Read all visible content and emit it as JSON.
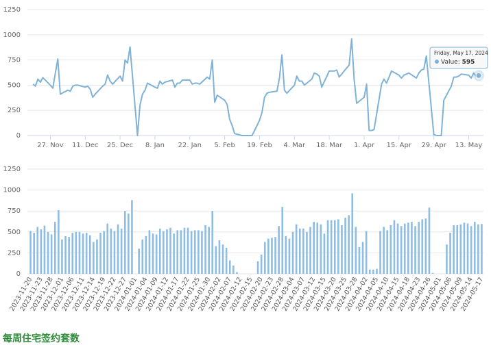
{
  "chart_data": [
    {
      "type": "line",
      "x": [
        "2023-11-20",
        "2023-11-21",
        "2023-11-22",
        "2023-11-23",
        "2023-11-24",
        "2023-11-27",
        "2023-11-28",
        "2023-11-29",
        "2023-11-30",
        "2023-12-01",
        "2023-12-04",
        "2023-12-05",
        "2023-12-06",
        "2023-12-07",
        "2023-12-08",
        "2023-12-11",
        "2023-12-12",
        "2023-12-13",
        "2023-12-14",
        "2023-12-15",
        "2023-12-18",
        "2023-12-19",
        "2023-12-20",
        "2023-12-21",
        "2023-12-22",
        "2023-12-25",
        "2023-12-26",
        "2023-12-27",
        "2023-12-28",
        "2023-12-29",
        "2024-01-01",
        "2024-01-02",
        "2024-01-03",
        "2024-01-04",
        "2024-01-05",
        "2024-01-08",
        "2024-01-09",
        "2024-01-10",
        "2024-01-11",
        "2024-01-12",
        "2024-01-15",
        "2024-01-16",
        "2024-01-17",
        "2024-01-18",
        "2024-01-19",
        "2024-01-22",
        "2024-01-23",
        "2024-01-24",
        "2024-01-25",
        "2024-01-26",
        "2024-01-29",
        "2024-01-30",
        "2024-01-31",
        "2024-02-01",
        "2024-02-02",
        "2024-02-05",
        "2024-02-06",
        "2024-02-07",
        "2024-02-08",
        "2024-02-09",
        "2024-02-12",
        "2024-02-13",
        "2024-02-14",
        "2024-02-15",
        "2024-02-16",
        "2024-02-19",
        "2024-02-20",
        "2024-02-21",
        "2024-02-22",
        "2024-02-23",
        "2024-02-26",
        "2024-02-27",
        "2024-02-28",
        "2024-02-29",
        "2024-03-01",
        "2024-03-04",
        "2024-03-05",
        "2024-03-06",
        "2024-03-07",
        "2024-03-08",
        "2024-03-11",
        "2024-03-12",
        "2024-03-13",
        "2024-03-14",
        "2024-03-15",
        "2024-03-18",
        "2024-03-19",
        "2024-03-20",
        "2024-03-21",
        "2024-03-22",
        "2024-03-25",
        "2024-03-26",
        "2024-03-27",
        "2024-03-28",
        "2024-03-29",
        "2024-04-01",
        "2024-04-02",
        "2024-04-03",
        "2024-04-04",
        "2024-04-05",
        "2024-04-08",
        "2024-04-09",
        "2024-04-10",
        "2024-04-11",
        "2024-04-12",
        "2024-04-15",
        "2024-04-16",
        "2024-04-17",
        "2024-04-18",
        "2024-04-19",
        "2024-04-22",
        "2024-04-23",
        "2024-04-24",
        "2024-04-25",
        "2024-04-26",
        "2024-04-29",
        "2024-04-30",
        "2024-05-01",
        "2024-05-02",
        "2024-05-03",
        "2024-05-06",
        "2024-05-07",
        "2024-05-08",
        "2024-05-09",
        "2024-05-10",
        "2024-05-13",
        "2024-05-14",
        "2024-05-15",
        "2024-05-16",
        "2024-05-17"
      ],
      "values": [
        510,
        490,
        560,
        530,
        575,
        500,
        470,
        620,
        760,
        410,
        450,
        440,
        490,
        500,
        500,
        480,
        490,
        460,
        380,
        410,
        490,
        510,
        600,
        540,
        510,
        590,
        540,
        750,
        720,
        880,
        0,
        300,
        410,
        450,
        520,
        480,
        470,
        540,
        510,
        530,
        550,
        480,
        520,
        520,
        550,
        550,
        510,
        520,
        520,
        510,
        580,
        560,
        750,
        330,
        400,
        350,
        310,
        160,
        100,
        20,
        0,
        0,
        0,
        0,
        0,
        150,
        230,
        380,
        420,
        430,
        440,
        570,
        800,
        450,
        420,
        500,
        590,
        540,
        540,
        500,
        560,
        620,
        610,
        590,
        480,
        640,
        640,
        640,
        650,
        580,
        670,
        700,
        960,
        560,
        320,
        380,
        510,
        50,
        50,
        60,
        510,
        560,
        520,
        580,
        640,
        600,
        570,
        600,
        610,
        620,
        570,
        620,
        650,
        660,
        790,
        10,
        0,
        0,
        0,
        350,
        490,
        580,
        580,
        590,
        610,
        600,
        570,
        620,
        590,
        595
      ],
      "color": "#7fb2d6",
      "xlim": [
        "2023-11-20",
        "2024-05-17"
      ],
      "xticks": [
        {
          "value": "2023-11-27",
          "label": "27. Nov"
        },
        {
          "value": "2023-12-11",
          "label": "11. Dec"
        },
        {
          "value": "2023-12-25",
          "label": "25. Dec"
        },
        {
          "value": "2024-01-08",
          "label": "8. Jan"
        },
        {
          "value": "2024-01-22",
          "label": "22. Jan"
        },
        {
          "value": "2024-02-05",
          "label": "5. Feb"
        },
        {
          "value": "2024-02-19",
          "label": "19. Feb"
        },
        {
          "value": "2024-03-04",
          "label": "4. Mar"
        },
        {
          "value": "2024-03-18",
          "label": "18. Mar"
        },
        {
          "value": "2024-04-01",
          "label": "1. Apr"
        },
        {
          "value": "2024-04-15",
          "label": "15. Apr"
        },
        {
          "value": "2024-04-29",
          "label": "29. Apr"
        },
        {
          "value": "2024-05-13",
          "label": "13. May"
        }
      ],
      "ylim": [
        0,
        1250
      ],
      "yticks": [
        0,
        250,
        500,
        750,
        1000,
        1250
      ],
      "grid": true,
      "tooltip": {
        "title": "Friday, May 17, 2024",
        "name": "Value:",
        "value": 595
      }
    },
    {
      "type": "bar",
      "categories": [
        "2023-11-20",
        null,
        null,
        "2023-11-23",
        null,
        null,
        "2023-11-28",
        null,
        null,
        "2023-12-01",
        null,
        null,
        "2023-12-06",
        null,
        null,
        "2023-12-11",
        null,
        null,
        "2023-12-14",
        null,
        null,
        "2023-12-19",
        null,
        null,
        "2023-12-22",
        null,
        null,
        "2023-12-27",
        null,
        null,
        "2024-01-01",
        null,
        null,
        "2024-01-04",
        null,
        null,
        "2024-01-09",
        null,
        null,
        "2024-01-12",
        null,
        null,
        "2024-01-17",
        null,
        null,
        "2024-01-22",
        null,
        null,
        "2024-01-25",
        null,
        null,
        "2024-01-30",
        null,
        null,
        "2024-02-02",
        null,
        null,
        "2024-02-07",
        null,
        null,
        "2024-02-12",
        null,
        null,
        "2024-02-15",
        null,
        null,
        "2024-02-20",
        null,
        null,
        "2024-02-23",
        null,
        null,
        "2024-02-28",
        null,
        null,
        "2024-03-04",
        null,
        null,
        "2024-03-07",
        null,
        null,
        "2024-03-12",
        null,
        null,
        "2024-03-15",
        null,
        null,
        "2024-03-20",
        null,
        null,
        "2024-03-25",
        null,
        null,
        "2024-03-28",
        null,
        null,
        "2024-04-02",
        null,
        null,
        "2024-04-05",
        null,
        null,
        "2024-04-10",
        null,
        null,
        "2024-04-15",
        null,
        null,
        "2024-04-18",
        null,
        null,
        "2024-04-23",
        null,
        null,
        "2024-04-26",
        null,
        null,
        "2024-05-01",
        null,
        null,
        "2024-05-06",
        null,
        null,
        "2024-05-09",
        null,
        null,
        "2024-05-14",
        null,
        null,
        "2024-05-17"
      ],
      "values": [
        510,
        490,
        560,
        530,
        575,
        500,
        470,
        620,
        760,
        410,
        450,
        440,
        490,
        500,
        500,
        480,
        490,
        460,
        380,
        410,
        490,
        510,
        600,
        540,
        510,
        590,
        540,
        750,
        720,
        880,
        0,
        300,
        410,
        450,
        520,
        480,
        470,
        540,
        510,
        530,
        550,
        480,
        520,
        520,
        550,
        550,
        510,
        520,
        520,
        510,
        580,
        560,
        750,
        330,
        400,
        350,
        310,
        160,
        100,
        20,
        0,
        0,
        0,
        0,
        0,
        150,
        230,
        380,
        420,
        430,
        440,
        570,
        800,
        450,
        420,
        500,
        590,
        540,
        540,
        500,
        560,
        620,
        610,
        590,
        480,
        640,
        640,
        640,
        650,
        580,
        670,
        700,
        960,
        560,
        320,
        380,
        510,
        50,
        50,
        60,
        510,
        560,
        520,
        580,
        640,
        600,
        570,
        600,
        610,
        620,
        570,
        620,
        650,
        660,
        790,
        10,
        0,
        0,
        0,
        350,
        490,
        580,
        580,
        590,
        610,
        600,
        570,
        620,
        590,
        595
      ],
      "color": "#8dbde2",
      "ylim": [
        0,
        1250
      ],
      "yticks": [
        0,
        250,
        500,
        750,
        1000,
        1250
      ],
      "grid": true
    },
    {
      "type": "heading",
      "title": "每周住宅签约套数"
    }
  ]
}
